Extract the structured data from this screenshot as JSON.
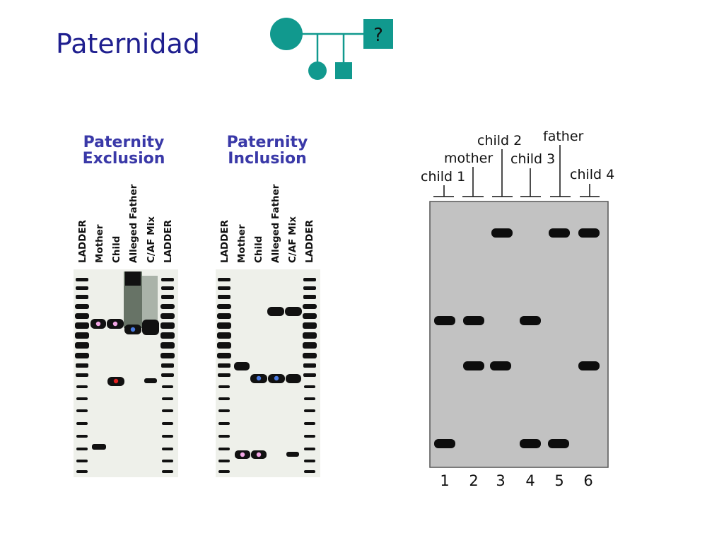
{
  "slide": {
    "title": "Paternidad"
  },
  "pedigree": {
    "unknown_symbol": "?",
    "color": "#11998e"
  },
  "exclusion_panel": {
    "title_line1": "Paternity",
    "title_line2": "Exclusion",
    "lanes": [
      "LADDER",
      "Mother",
      "Child",
      "Alleged Father",
      "C/AF Mix",
      "LADDER"
    ]
  },
  "inclusion_panel": {
    "title_line1": "Paternity",
    "title_line2": "Inclusion",
    "lanes": [
      "LADDER",
      "Mother",
      "Child",
      "Alleged Father",
      "C/AF Mix",
      "LADDER"
    ]
  },
  "gel": {
    "top_labels": [
      "child 1",
      "mother",
      "child 2",
      "child 3",
      "father",
      "child 4"
    ],
    "lane_numbers": [
      "1",
      "2",
      "3",
      "4",
      "5",
      "6"
    ]
  },
  "colors": {
    "title": "#1f1f8f",
    "panel_title": "#3a39a8",
    "gel_bg": "#c2c2c2",
    "band": "#0d0d0d"
  }
}
